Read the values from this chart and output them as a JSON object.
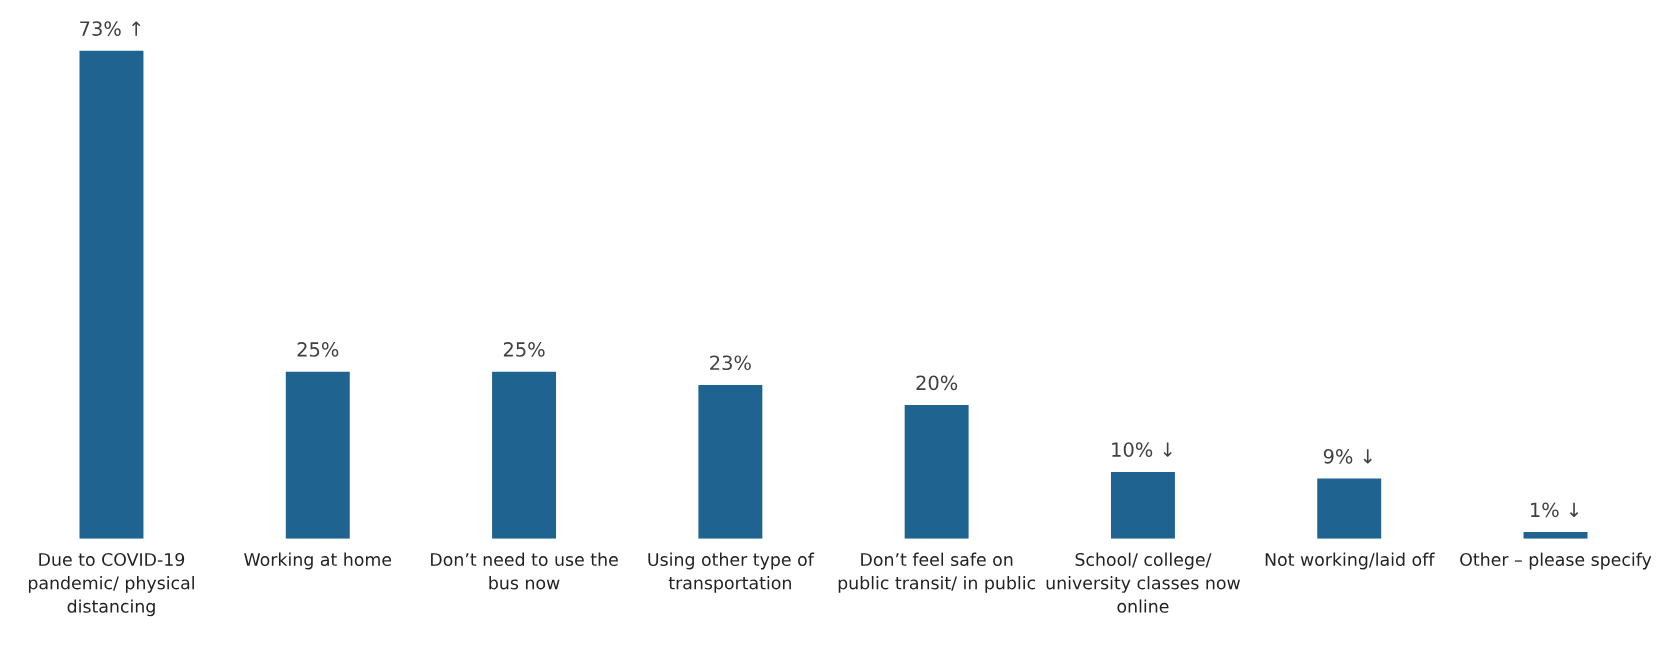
{
  "chart_data": {
    "type": "bar",
    "categories": [
      "Due to COVID-19\npandemic/ physical\ndistancing",
      "Working at home",
      "Don’t need to use the\nbus now",
      "Using other type of\ntransportation",
      "Don’t feel safe on\npublic transit/ in public",
      "School/ college/\nuniversity classes now\nonline",
      "Not working/laid off",
      "Other – please specify"
    ],
    "values": [
      73,
      25,
      25,
      23,
      20,
      10,
      9,
      1
    ],
    "value_labels": [
      "73% ↑",
      "25%",
      "25%",
      "23%",
      "20%",
      "10% ↓",
      "9% ↓",
      "1% ↓"
    ],
    "color": "#1f6391"
  }
}
